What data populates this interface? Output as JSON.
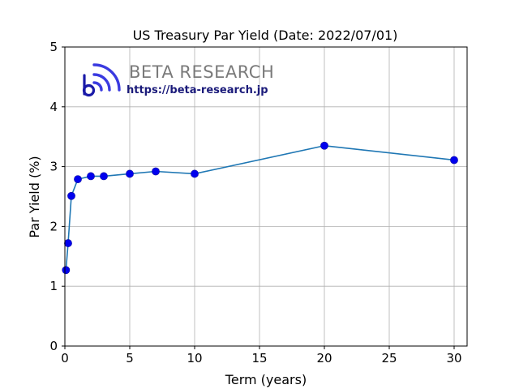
{
  "chart_data": {
    "type": "line",
    "title": "US Treasury Par Yield (Date: 2022/07/01)",
    "xlabel": "Term (years)",
    "ylabel": "Par Yield (%)",
    "xlim": [
      0,
      31
    ],
    "ylim": [
      0,
      5
    ],
    "xticks": [
      0,
      5,
      10,
      15,
      20,
      25,
      30
    ],
    "yticks": [
      0,
      1,
      2,
      3,
      4,
      5
    ],
    "grid": true,
    "legend": "none",
    "colors": {
      "line": "#1f77b4",
      "marker": "#0000ee"
    },
    "series": [
      {
        "x": [
          0.0833,
          0.25,
          0.5,
          1,
          2,
          3,
          5,
          7,
          10,
          20,
          30
        ],
        "y": [
          1.27,
          1.72,
          2.51,
          2.79,
          2.84,
          2.84,
          2.88,
          2.92,
          2.88,
          3.35,
          3.11
        ]
      }
    ]
  },
  "watermark": {
    "name": "BETA RESEARCH",
    "url": "https://beta-research.jp"
  }
}
